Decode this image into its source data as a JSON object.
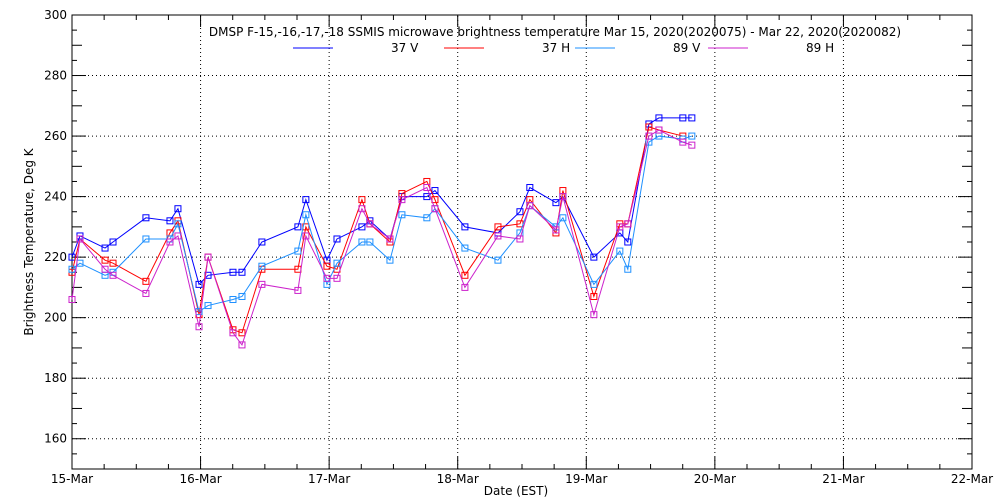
{
  "chart_data": {
    "type": "line",
    "title": "DMSP F-15,-16,-17,-18 SSMIS microwave brightness temperature Mar 15, 2020(2020075) - Mar 22, 2020(2020082)",
    "xlabel": "Date (EST)",
    "ylabel": "Brightness Temperature, Deg K",
    "xlim": [
      0,
      7
    ],
    "ylim": [
      150,
      300
    ],
    "x_ticks": [
      "15-Mar",
      "16-Mar",
      "17-Mar",
      "18-Mar",
      "19-Mar",
      "20-Mar",
      "21-Mar",
      "22-Mar"
    ],
    "y_ticks": [
      160,
      180,
      200,
      220,
      240,
      260,
      280,
      300
    ],
    "grid": true,
    "legend_position": "top-center",
    "x_unit": "days since 15-Mar 00:00",
    "x": [
      0,
      0.062,
      0.257,
      0.319,
      0.575,
      0.762,
      0.824,
      0.988,
      1.058,
      1.252,
      1.322,
      1.477,
      1.757,
      1.819,
      1.983,
      2.061,
      2.255,
      2.317,
      2.473,
      2.566,
      2.76,
      2.823,
      3.056,
      3.313,
      3.484,
      3.561,
      3.764,
      3.818,
      4.059,
      4.261,
      4.323,
      4.487,
      4.565,
      4.751,
      4.821
    ],
    "series": [
      {
        "name": "37 V",
        "color": "#0000ff",
        "values": [
          220,
          227,
          223,
          225,
          233,
          232,
          236,
          211,
          214,
          215,
          215,
          225,
          230,
          239,
          219,
          226,
          230,
          232,
          226,
          240,
          240,
          242,
          230,
          228,
          235,
          243,
          238,
          240,
          220,
          228,
          225,
          264,
          266,
          266,
          266
        ]
      },
      {
        "name": "37 H",
        "color": "#ff0000",
        "values": [
          215,
          226,
          219,
          218,
          212,
          228,
          232,
          201,
          220,
          196,
          195,
          216,
          216,
          230,
          217,
          216,
          239,
          231,
          225,
          241,
          245,
          239,
          214,
          230,
          231,
          239,
          228,
          242,
          207,
          231,
          231,
          263,
          262,
          260,
          null
        ]
      },
      {
        "name": "89 V",
        "color": "#1e90ff",
        "values": [
          216,
          218,
          214,
          215,
          226,
          226,
          231,
          202,
          204,
          206,
          207,
          217,
          222,
          234,
          211,
          218,
          225,
          225,
          219,
          234,
          233,
          236,
          223,
          219,
          228,
          237,
          230,
          233,
          211,
          222,
          216,
          258,
          260,
          259,
          260
        ]
      },
      {
        "name": "89 H",
        "color": "#cc22cc",
        "values": [
          206,
          226,
          216,
          214,
          208,
          225,
          227,
          197,
          220,
          195,
          191,
          211,
          209,
          227,
          213,
          213,
          236,
          231,
          226,
          239,
          243,
          236,
          210,
          227,
          226,
          237,
          229,
          240,
          201,
          230,
          231,
          260,
          262,
          258,
          257
        ]
      }
    ]
  }
}
